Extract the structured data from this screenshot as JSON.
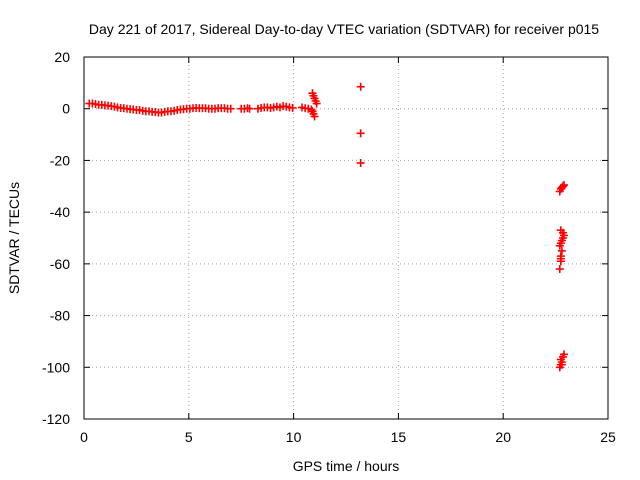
{
  "chart_data": {
    "type": "scatter",
    "title": "Day 221 of 2017, Sidereal Day-to-day VTEC variation (SDTVAR) for receiver p015",
    "xlabel": "GPS time / hours",
    "ylabel": "SDTVAR / TECUs",
    "xlim": [
      0,
      25
    ],
    "ylim": [
      -120,
      20
    ],
    "xticks": [
      0,
      5,
      10,
      15,
      20,
      25
    ],
    "yticks": [
      -120,
      -100,
      -80,
      -60,
      -40,
      -20,
      0,
      20
    ],
    "grid": true,
    "legend": "none",
    "marker": "+",
    "series": [
      {
        "name": "SDTVAR",
        "color": "#ff0000",
        "x": [
          0.25,
          0.4,
          0.55,
          0.7,
          0.85,
          1.0,
          1.15,
          1.3,
          1.45,
          1.6,
          1.75,
          1.9,
          2.05,
          2.2,
          2.35,
          2.5,
          2.65,
          2.8,
          2.95,
          3.1,
          3.25,
          3.4,
          3.55,
          3.7,
          3.85,
          4.0,
          4.15,
          4.3,
          4.45,
          4.6,
          4.75,
          4.9,
          5.05,
          5.2,
          5.35,
          5.5,
          5.65,
          5.8,
          5.95,
          6.1,
          6.25,
          6.4,
          6.55,
          6.7,
          6.85,
          7.0,
          7.5,
          7.65,
          7.8,
          7.9,
          8.3,
          8.45,
          8.6,
          8.75,
          8.9,
          9.05,
          9.2,
          9.35,
          9.5,
          9.65,
          9.8,
          9.95,
          10.4,
          10.55,
          10.7,
          10.85,
          10.9,
          10.95,
          11.0,
          11.05,
          11.1,
          10.9,
          10.95,
          11.0,
          13.2,
          13.2,
          13.2,
          22.7,
          22.75,
          22.8,
          22.85,
          22.9,
          22.7,
          22.75,
          22.8,
          22.85,
          22.9,
          22.7,
          22.75,
          22.8,
          22.85,
          22.75,
          22.75,
          22.75,
          22.7,
          22.75,
          22.8,
          22.85,
          22.9,
          22.75,
          22.8
        ],
        "y": [
          2,
          2,
          1.8,
          1.5,
          1.5,
          1.3,
          1.2,
          1,
          0.8,
          0.5,
          0.3,
          0.2,
          0,
          -0.2,
          -0.3,
          -0.5,
          -0.5,
          -0.8,
          -1,
          -1,
          -1.2,
          -1.3,
          -1.5,
          -1.5,
          -1.2,
          -1,
          -1,
          -0.8,
          -0.5,
          -0.3,
          -0.2,
          0,
          0,
          0.2,
          0.3,
          0.2,
          0.2,
          0.2,
          0,
          0,
          0,
          0.2,
          0.2,
          0.2,
          0,
          0,
          0,
          0,
          0.2,
          0,
          0,
          0.3,
          0.5,
          0.5,
          0.3,
          0.5,
          0.8,
          0.5,
          1,
          0.8,
          0.5,
          0.3,
          0.5,
          0.2,
          0,
          -0.3,
          6,
          5,
          4,
          3,
          2,
          -1,
          -2,
          -3,
          8.5,
          -9.5,
          -21,
          -32,
          -31,
          -30.5,
          -30,
          -29.5,
          -53,
          -52,
          -51,
          -50,
          -49,
          -62,
          -58,
          -55,
          -48,
          -47,
          -57,
          -59,
          -100,
          -99,
          -98,
          -96,
          -95,
          -97,
          -99
        ]
      }
    ]
  }
}
